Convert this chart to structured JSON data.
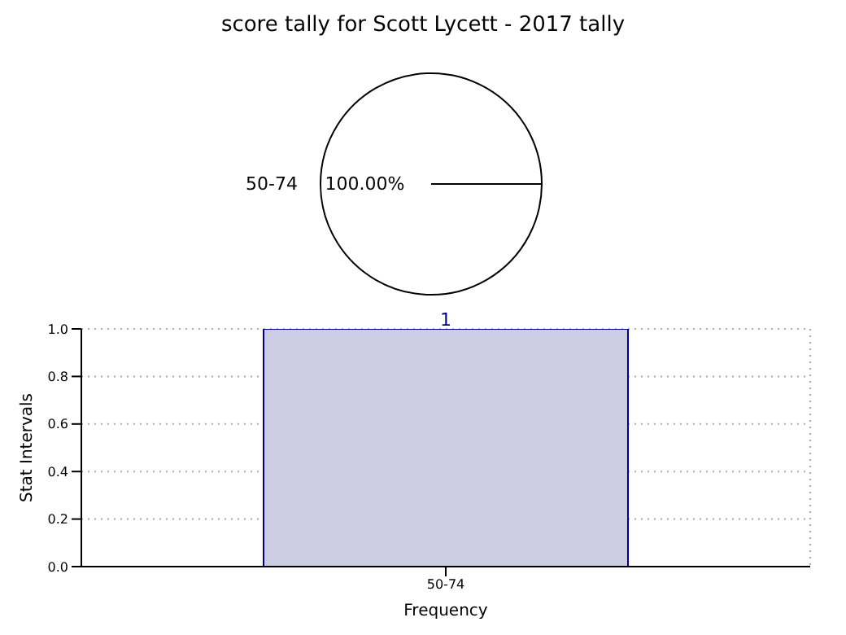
{
  "chart_data": [
    {
      "type": "pie",
      "title": "score tally for Scott Lycett - 2017 tally",
      "categories": [
        "50-74"
      ],
      "values": [
        100
      ],
      "colors": [
        "#ffffff"
      ],
      "value_labels": [
        "100.00%"
      ]
    },
    {
      "type": "bar",
      "categories": [
        "50-74"
      ],
      "values": [
        1
      ],
      "color": "#cccce5",
      "xlabel": "Frequency",
      "ylabel": "Stat Intervals",
      "ylim": [
        0,
        1
      ],
      "yticks": [
        {
          "value": 0,
          "label": "0.0"
        },
        {
          "value": 0.2,
          "label": "0.2"
        },
        {
          "value": 0.4,
          "label": "0.4"
        },
        {
          "value": 0.6,
          "label": "0.6"
        },
        {
          "value": 0.8,
          "label": "0.8"
        },
        {
          "value": 1,
          "label": "1.0"
        }
      ],
      "grid": true,
      "data_labels": true
    }
  ]
}
